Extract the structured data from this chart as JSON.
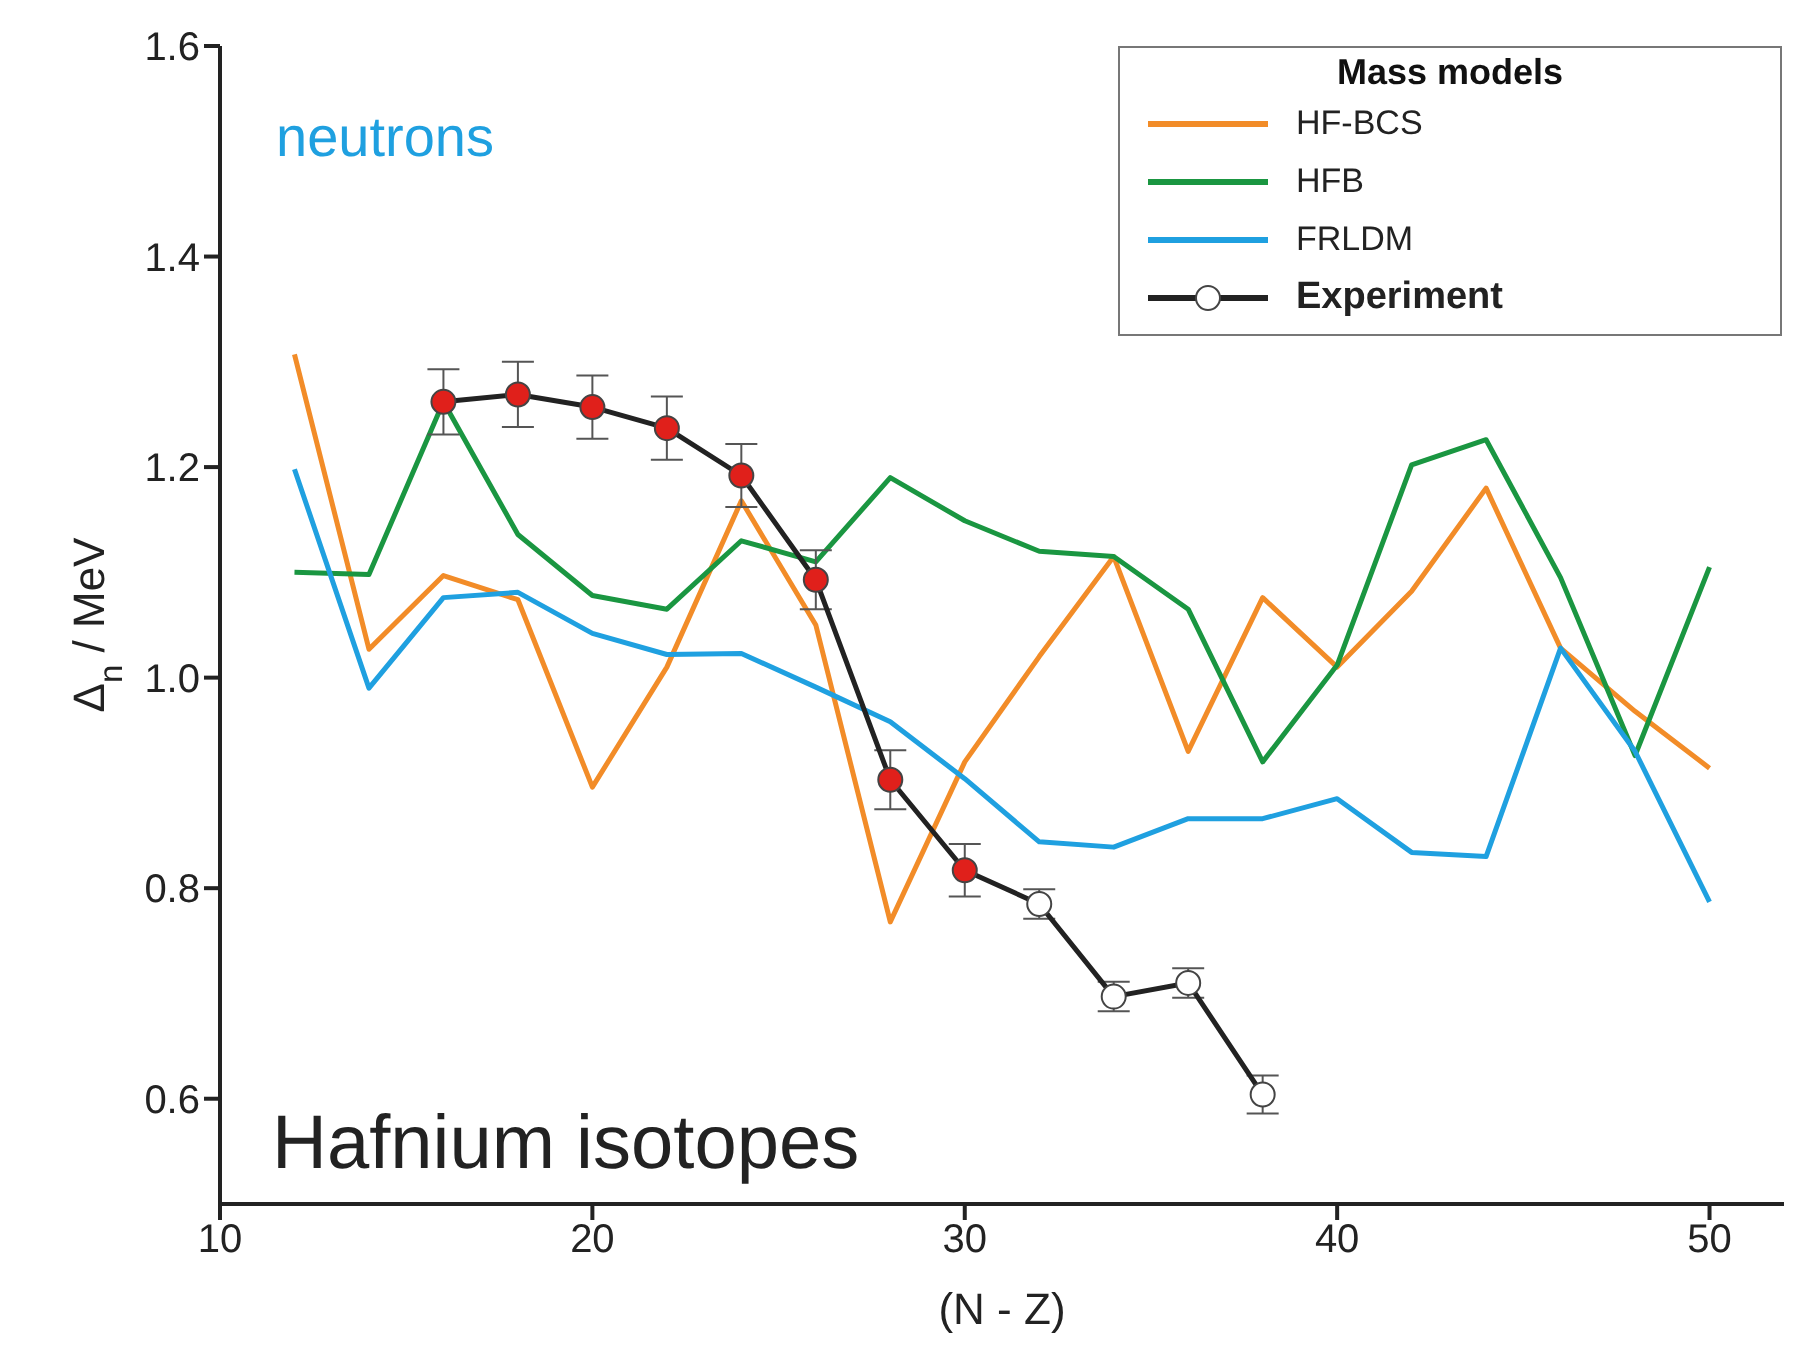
{
  "chart_data": {
    "type": "line",
    "xlabel": "(N - Z)",
    "ylabel": "Δ$_{n}$ / MeV",
    "legend_title": "Mass models",
    "annotations": [
      "neutrons",
      "Hafnium isotopes"
    ],
    "xlim": [
      10,
      52
    ],
    "xticks": [
      10,
      20,
      30,
      40,
      50
    ],
    "ylim": [
      0.5,
      1.6
    ],
    "yticks": [
      0.6,
      0.8,
      {
        "value": 1,
        "label": "1.0"
      },
      1.2,
      1.4,
      1.6
    ],
    "legend": "top right",
    "series": [
      {
        "name": "HF-BCS",
        "color": "#f28c28",
        "marker": "none",
        "x": [
          12,
          14,
          16,
          18,
          20,
          22,
          24,
          26,
          28,
          30,
          32,
          34,
          36,
          38,
          40,
          42,
          44,
          46,
          48,
          50
        ],
        "values": [
          1.307,
          1.027,
          1.097,
          1.074,
          0.896,
          1.01,
          1.168,
          1.05,
          0.768,
          0.92,
          1.02,
          1.115,
          0.93,
          1.076,
          1.01,
          1.082,
          1.18,
          1.028,
          0.968,
          0.914
        ]
      },
      {
        "name": "HFB",
        "color": "#1a9641",
        "marker": "none",
        "x": [
          12,
          14,
          16,
          18,
          20,
          22,
          24,
          26,
          28,
          30,
          32,
          34,
          36,
          38,
          40,
          42,
          44,
          46,
          48,
          50
        ],
        "values": [
          1.1,
          1.098,
          1.262,
          1.136,
          1.078,
          1.065,
          1.13,
          1.11,
          1.19,
          1.149,
          1.12,
          1.115,
          1.065,
          0.92,
          1.012,
          1.202,
          1.226,
          1.095,
          0.926,
          1.105
        ]
      },
      {
        "name": "FRLDM",
        "color": "#1fa0e0",
        "marker": "none",
        "x": [
          12,
          14,
          16,
          18,
          20,
          22,
          24,
          26,
          28,
          30,
          32,
          34,
          36,
          38,
          40,
          42,
          44,
          46,
          48,
          50
        ],
        "values": [
          1.198,
          0.99,
          1.076,
          1.081,
          1.042,
          1.022,
          1.023,
          0.991,
          0.958,
          0.904,
          0.844,
          0.839,
          0.866,
          0.866,
          0.885,
          0.834,
          0.83,
          1.028,
          0.93,
          0.787
        ]
      },
      {
        "name": "Experiment",
        "color": "#222222",
        "marker": "circle",
        "x": [
          16,
          18,
          20,
          22,
          24,
          26,
          28,
          30,
          32,
          34,
          36,
          38
        ],
        "values": [
          1.262,
          1.269,
          1.257,
          1.237,
          1.192,
          1.093,
          0.903,
          0.817,
          0.785,
          0.697,
          0.71,
          0.604
        ],
        "colors": [
          "#e0201b",
          "#e0201b",
          "#e0201b",
          "#e0201b",
          "#e0201b",
          "#e0201b",
          "#e0201b",
          "#e0201b",
          "#ffffff",
          "#ffffff",
          "#ffffff",
          "#ffffff"
        ],
        "errors": [
          0.031,
          0.031,
          0.03,
          0.03,
          0.03,
          0.028,
          0.028,
          0.025,
          0.014,
          0.014,
          0.014,
          0.018
        ]
      }
    ]
  }
}
